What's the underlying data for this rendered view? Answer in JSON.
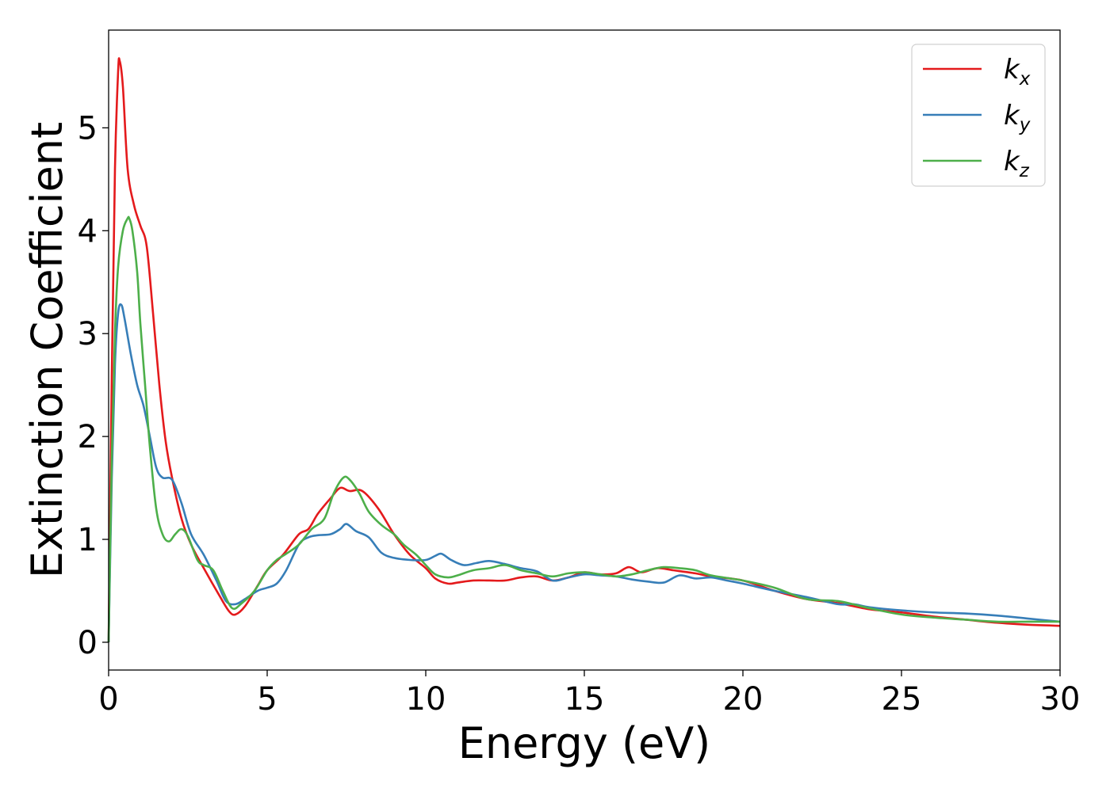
{
  "chart_data": {
    "type": "line",
    "xlabel": "Energy (eV)",
    "ylabel": "Extinction Coefficient",
    "xlim": [
      0,
      30
    ],
    "ylim": [
      -0.27,
      5.95
    ],
    "xticks": [
      0,
      5,
      10,
      15,
      20,
      25,
      30
    ],
    "xtick_labels": [
      "0",
      "5",
      "10",
      "15",
      "20",
      "25",
      "30"
    ],
    "yticks": [
      0,
      1,
      2,
      3,
      4,
      5
    ],
    "ytick_labels": [
      "0",
      "1",
      "2",
      "3",
      "4",
      "5"
    ],
    "grid": false,
    "legend_position": "top-right",
    "series": [
      {
        "name": "k",
        "subscript": "x",
        "color": "#e41a1c",
        "x": [
          0,
          0.1,
          0.2,
          0.3,
          0.35,
          0.45,
          0.6,
          0.8,
          1.0,
          1.2,
          1.4,
          1.6,
          1.8,
          2.0,
          2.3,
          2.6,
          3.0,
          3.5,
          3.8,
          4.0,
          4.3,
          4.7,
          5.0,
          5.5,
          6.0,
          6.3,
          6.6,
          7.0,
          7.3,
          7.6,
          8.0,
          8.5,
          9.0,
          9.5,
          10.0,
          10.3,
          10.7,
          11.0,
          11.5,
          12.0,
          12.5,
          13.0,
          13.5,
          14.0,
          14.5,
          15.0,
          15.5,
          16.0,
          16.4,
          16.8,
          17.3,
          17.8,
          18.5,
          19.0,
          20.0,
          21.0,
          22.0,
          23.0,
          24.0,
          25.0,
          26.0,
          27.0,
          28.0,
          29.0,
          30.0
        ],
        "values": [
          0.0,
          2.6,
          4.6,
          5.55,
          5.65,
          5.4,
          4.6,
          4.25,
          4.05,
          3.85,
          3.2,
          2.5,
          1.95,
          1.6,
          1.2,
          0.95,
          0.72,
          0.45,
          0.3,
          0.27,
          0.35,
          0.55,
          0.7,
          0.85,
          1.05,
          1.1,
          1.25,
          1.4,
          1.5,
          1.47,
          1.47,
          1.3,
          1.05,
          0.85,
          0.72,
          0.62,
          0.57,
          0.58,
          0.6,
          0.6,
          0.6,
          0.63,
          0.64,
          0.6,
          0.63,
          0.68,
          0.66,
          0.67,
          0.73,
          0.68,
          0.72,
          0.7,
          0.67,
          0.64,
          0.6,
          0.5,
          0.42,
          0.38,
          0.32,
          0.29,
          0.25,
          0.22,
          0.19,
          0.17,
          0.16
        ]
      },
      {
        "name": "k",
        "subscript": "y",
        "color": "#377eb8",
        "x": [
          0,
          0.1,
          0.2,
          0.3,
          0.4,
          0.5,
          0.7,
          0.9,
          1.1,
          1.3,
          1.5,
          1.7,
          2.0,
          2.3,
          2.6,
          3.0,
          3.4,
          3.7,
          4.0,
          4.3,
          4.7,
          5.0,
          5.3,
          5.6,
          6.0,
          6.3,
          6.6,
          7.0,
          7.3,
          7.5,
          7.8,
          8.2,
          8.6,
          9.0,
          9.5,
          10.0,
          10.3,
          10.5,
          10.8,
          11.2,
          11.6,
          12.0,
          12.5,
          13.0,
          13.5,
          14.0,
          14.5,
          15.0,
          15.5,
          16.0,
          16.5,
          17.0,
          17.5,
          18.0,
          18.5,
          19.0,
          19.5,
          20.0,
          21.0,
          22.0,
          23.0,
          23.5,
          24.0,
          25.0,
          26.0,
          27.0,
          28.0,
          29.0,
          30.0
        ],
        "values": [
          0.0,
          1.6,
          2.7,
          3.2,
          3.28,
          3.15,
          2.8,
          2.5,
          2.3,
          2.0,
          1.7,
          1.6,
          1.58,
          1.35,
          1.05,
          0.85,
          0.6,
          0.4,
          0.37,
          0.42,
          0.5,
          0.53,
          0.57,
          0.7,
          0.95,
          1.02,
          1.04,
          1.05,
          1.1,
          1.15,
          1.08,
          1.02,
          0.87,
          0.82,
          0.8,
          0.8,
          0.84,
          0.86,
          0.8,
          0.75,
          0.77,
          0.79,
          0.76,
          0.72,
          0.69,
          0.6,
          0.63,
          0.66,
          0.65,
          0.64,
          0.61,
          0.59,
          0.58,
          0.65,
          0.62,
          0.63,
          0.6,
          0.57,
          0.5,
          0.44,
          0.37,
          0.37,
          0.34,
          0.31,
          0.29,
          0.28,
          0.26,
          0.23,
          0.2
        ]
      },
      {
        "name": "k",
        "subscript": "z",
        "color": "#4daf4a",
        "x": [
          0,
          0.1,
          0.2,
          0.3,
          0.45,
          0.6,
          0.65,
          0.75,
          0.9,
          1.0,
          1.15,
          1.3,
          1.5,
          1.7,
          1.9,
          2.1,
          2.3,
          2.5,
          2.8,
          3.0,
          3.3,
          3.6,
          3.9,
          4.2,
          4.6,
          5.0,
          5.3,
          5.6,
          6.0,
          6.4,
          6.8,
          7.1,
          7.4,
          7.6,
          7.9,
          8.2,
          8.6,
          9.0,
          9.3,
          9.7,
          10.0,
          10.3,
          10.7,
          11.0,
          11.5,
          12.0,
          12.5,
          13.0,
          13.5,
          14.0,
          14.5,
          15.0,
          15.5,
          16.0,
          16.5,
          17.0,
          17.5,
          18.0,
          18.5,
          19.0,
          20.0,
          21.0,
          22.0,
          23.0,
          24.0,
          25.0,
          26.0,
          27.0,
          28.0,
          29.0,
          30.0
        ],
        "values": [
          0.0,
          1.8,
          3.0,
          3.65,
          4.0,
          4.12,
          4.12,
          4.0,
          3.6,
          3.1,
          2.5,
          1.9,
          1.3,
          1.05,
          0.98,
          1.05,
          1.1,
          1.03,
          0.8,
          0.75,
          0.7,
          0.5,
          0.33,
          0.38,
          0.5,
          0.7,
          0.8,
          0.86,
          0.95,
          1.1,
          1.2,
          1.45,
          1.6,
          1.58,
          1.45,
          1.27,
          1.14,
          1.05,
          0.95,
          0.85,
          0.75,
          0.66,
          0.63,
          0.65,
          0.7,
          0.72,
          0.75,
          0.7,
          0.67,
          0.64,
          0.67,
          0.68,
          0.66,
          0.64,
          0.66,
          0.7,
          0.73,
          0.72,
          0.7,
          0.65,
          0.6,
          0.53,
          0.42,
          0.4,
          0.33,
          0.27,
          0.24,
          0.22,
          0.2,
          0.2,
          0.2
        ]
      }
    ]
  }
}
